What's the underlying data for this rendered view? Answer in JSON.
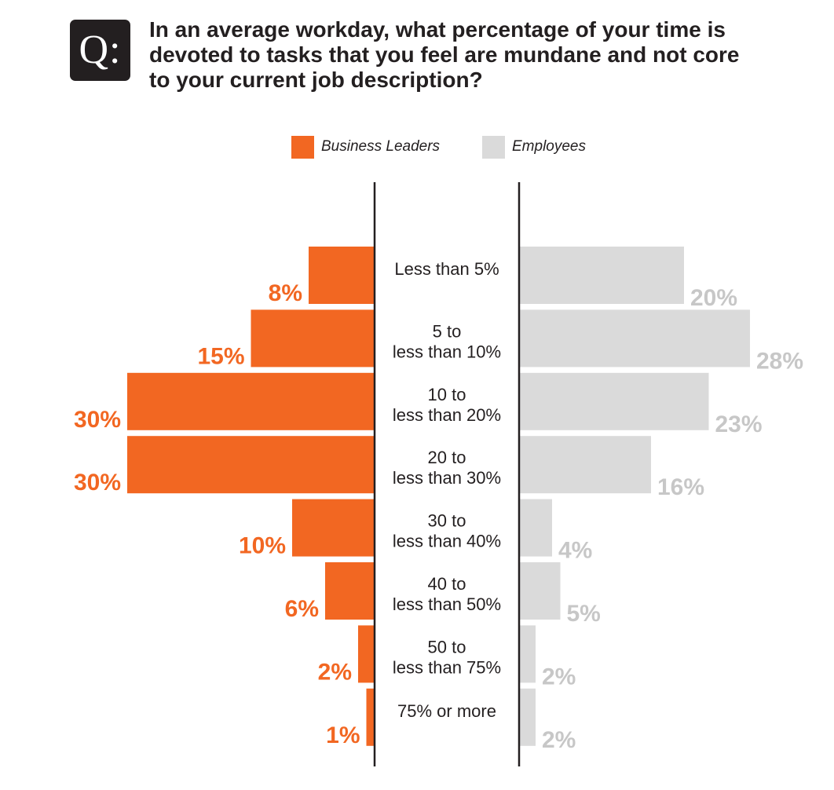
{
  "header": {
    "badge": "Q:",
    "question_lines": [
      "In an average workday, what percentage of your time is",
      "devoted to tasks that you feel are mundane and not core",
      "to your current job description?"
    ]
  },
  "colors": {
    "leaders": "#f26722",
    "employees": "#dadada",
    "employees_label": "#c7c7c7",
    "axis": "#231f20"
  },
  "chart_data": {
    "type": "bar",
    "orientation": "horizontal-butterfly",
    "title": "In an average workday, what percentage of your time is devoted to tasks that you feel are mundane and not core to your current job description?",
    "legend_position": "top-center",
    "categories": [
      [
        "Less than 5%"
      ],
      [
        "5 to",
        "less than 10%"
      ],
      [
        "10 to",
        "less than 20%"
      ],
      [
        "20 to",
        "less than 30%"
      ],
      [
        "30 to",
        "less than 40%"
      ],
      [
        "40 to",
        "less than 50%"
      ],
      [
        "50 to",
        "less than 75%"
      ],
      [
        "75% or more"
      ]
    ],
    "series": [
      {
        "name": "Business Leaders",
        "side": "left",
        "values": [
          8,
          15,
          30,
          30,
          10,
          6,
          2,
          1
        ],
        "labels": [
          "8%",
          "15%",
          "30%",
          "30%",
          "10%",
          "6%",
          "2%",
          "1%"
        ]
      },
      {
        "name": "Employees",
        "side": "right",
        "values": [
          20,
          28,
          23,
          16,
          4,
          5,
          2,
          2
        ],
        "labels": [
          "20%",
          "28%",
          "23%",
          "16%",
          "4%",
          "5%",
          "2%",
          "2%"
        ]
      }
    ],
    "grid": false
  }
}
